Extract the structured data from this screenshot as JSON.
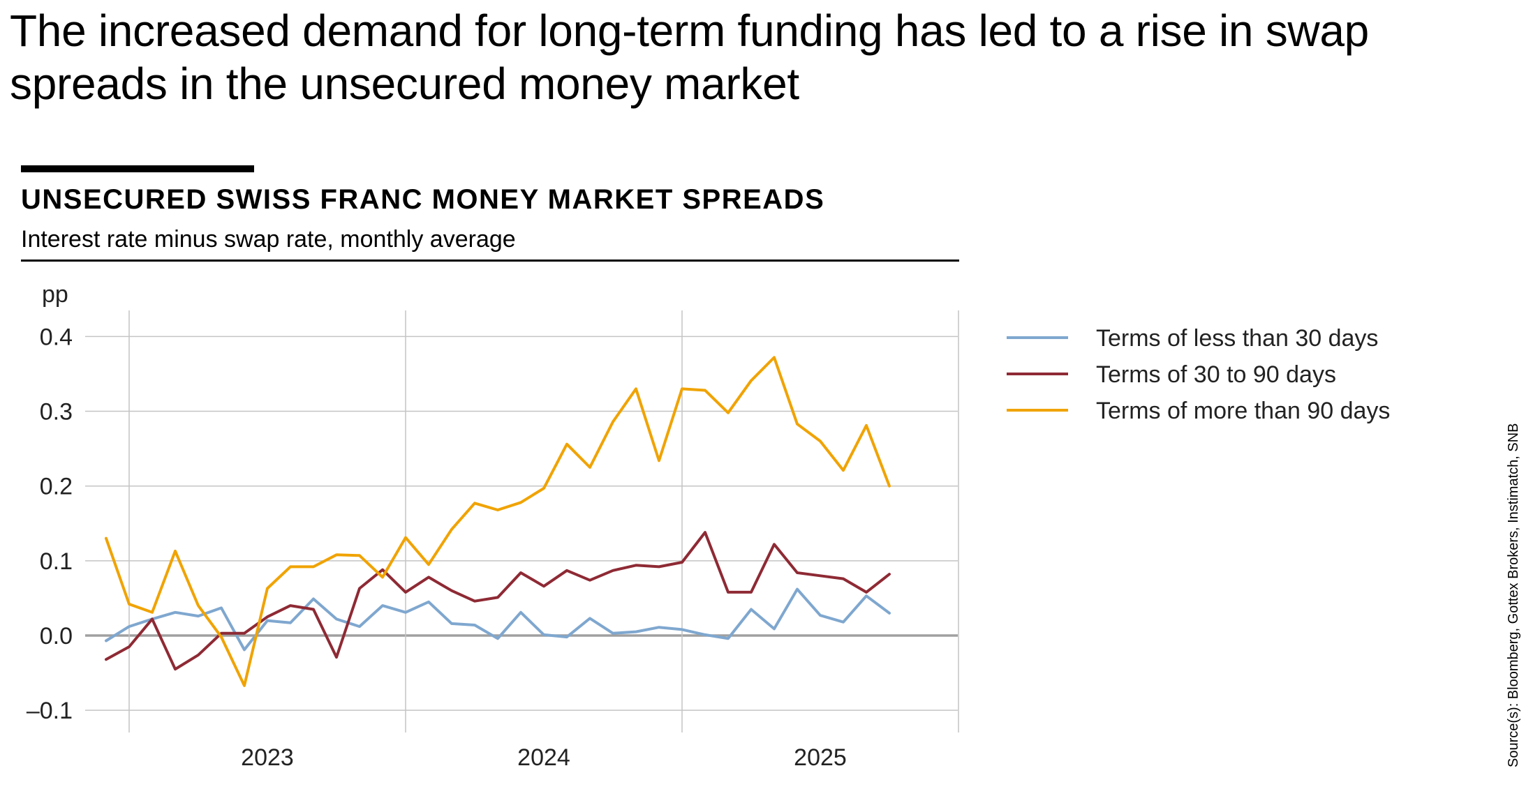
{
  "headline": "The increased demand for long-term funding has led to a rise in swap spreads in the unsecured money market",
  "source": "Source(s): Bloomberg, Gottex Brokers, Instimatch, SNB",
  "chart_data": {
    "type": "line",
    "title": "UNSECURED SWISS FRANC MONEY MARKET SPREADS",
    "subtitle": "Interest rate minus swap rate, monthly average",
    "ylabel": "pp",
    "xlabel": "",
    "ylim": [
      -0.1,
      0.4
    ],
    "yticks": [
      0.4,
      0.3,
      0.2,
      0.1,
      0.0,
      -0.1
    ],
    "ytick_labels": [
      "0.4",
      "0.3",
      "0.2",
      "0.1",
      "0.0",
      "–0.1"
    ],
    "x_start": "2022-12",
    "x_end": "2025-12",
    "year_labels": [
      "2023",
      "2024",
      "2025"
    ],
    "grid": true,
    "legend_position": "right",
    "series": [
      {
        "name": "Terms of less than 30 days",
        "color": "#7fa7cf",
        "values": [
          -0.007,
          0.012,
          0.022,
          0.031,
          0.026,
          0.037,
          -0.019,
          0.02,
          0.017,
          0.049,
          0.022,
          0.012,
          0.04,
          0.031,
          0.045,
          0.016,
          0.014,
          -0.004,
          0.031,
          0.001,
          -0.002,
          0.023,
          0.003,
          0.005,
          0.011,
          0.008,
          0.001,
          -0.004,
          0.035,
          0.009,
          0.062,
          0.027,
          0.018,
          0.053,
          0.03
        ]
      },
      {
        "name": "Terms of 30 to 90 days",
        "color": "#8e2a34",
        "values": [
          -0.032,
          -0.015,
          0.022,
          -0.045,
          -0.026,
          0.003,
          0.003,
          0.025,
          0.04,
          0.035,
          -0.029,
          0.063,
          0.088,
          0.058,
          0.078,
          0.06,
          0.046,
          0.051,
          0.084,
          0.066,
          0.087,
          0.074,
          0.087,
          0.094,
          0.092,
          0.098,
          0.138,
          0.058,
          0.058,
          0.122,
          0.084,
          0.08,
          0.076,
          0.058,
          0.082
        ]
      },
      {
        "name": "Terms of more than 90 days",
        "color": "#f0a300",
        "values": [
          0.13,
          0.042,
          0.031,
          0.113,
          0.04,
          -0.002,
          -0.067,
          0.063,
          0.092,
          0.092,
          0.108,
          0.107,
          0.078,
          0.131,
          0.095,
          0.142,
          0.177,
          0.168,
          0.178,
          0.197,
          0.256,
          0.225,
          0.286,
          0.33,
          0.234,
          0.33,
          0.328,
          0.298,
          0.341,
          0.372,
          0.283,
          0.26,
          0.221,
          0.281,
          0.2
        ]
      }
    ]
  }
}
